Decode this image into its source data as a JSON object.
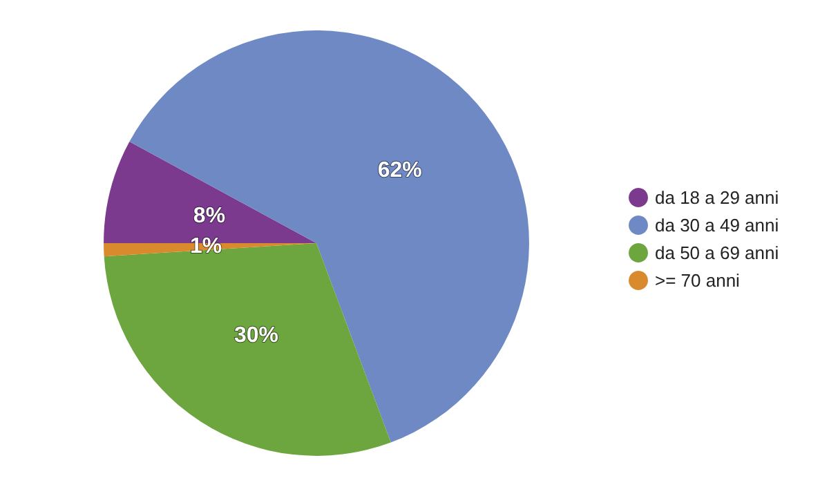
{
  "chart_data": {
    "type": "pie",
    "categories": [
      "da 18 a 29 anni",
      "da 30 a 49 anni",
      "da 50 a 69 anni",
      ">= 70 anni"
    ],
    "values": [
      8,
      62,
      30,
      1
    ],
    "colors": [
      "#7b3a8e",
      "#6e89c4",
      "#6da53e",
      "#d98a2c"
    ],
    "value_labels": [
      "8%",
      "62%",
      "30%",
      "1%"
    ],
    "legend": "right"
  }
}
